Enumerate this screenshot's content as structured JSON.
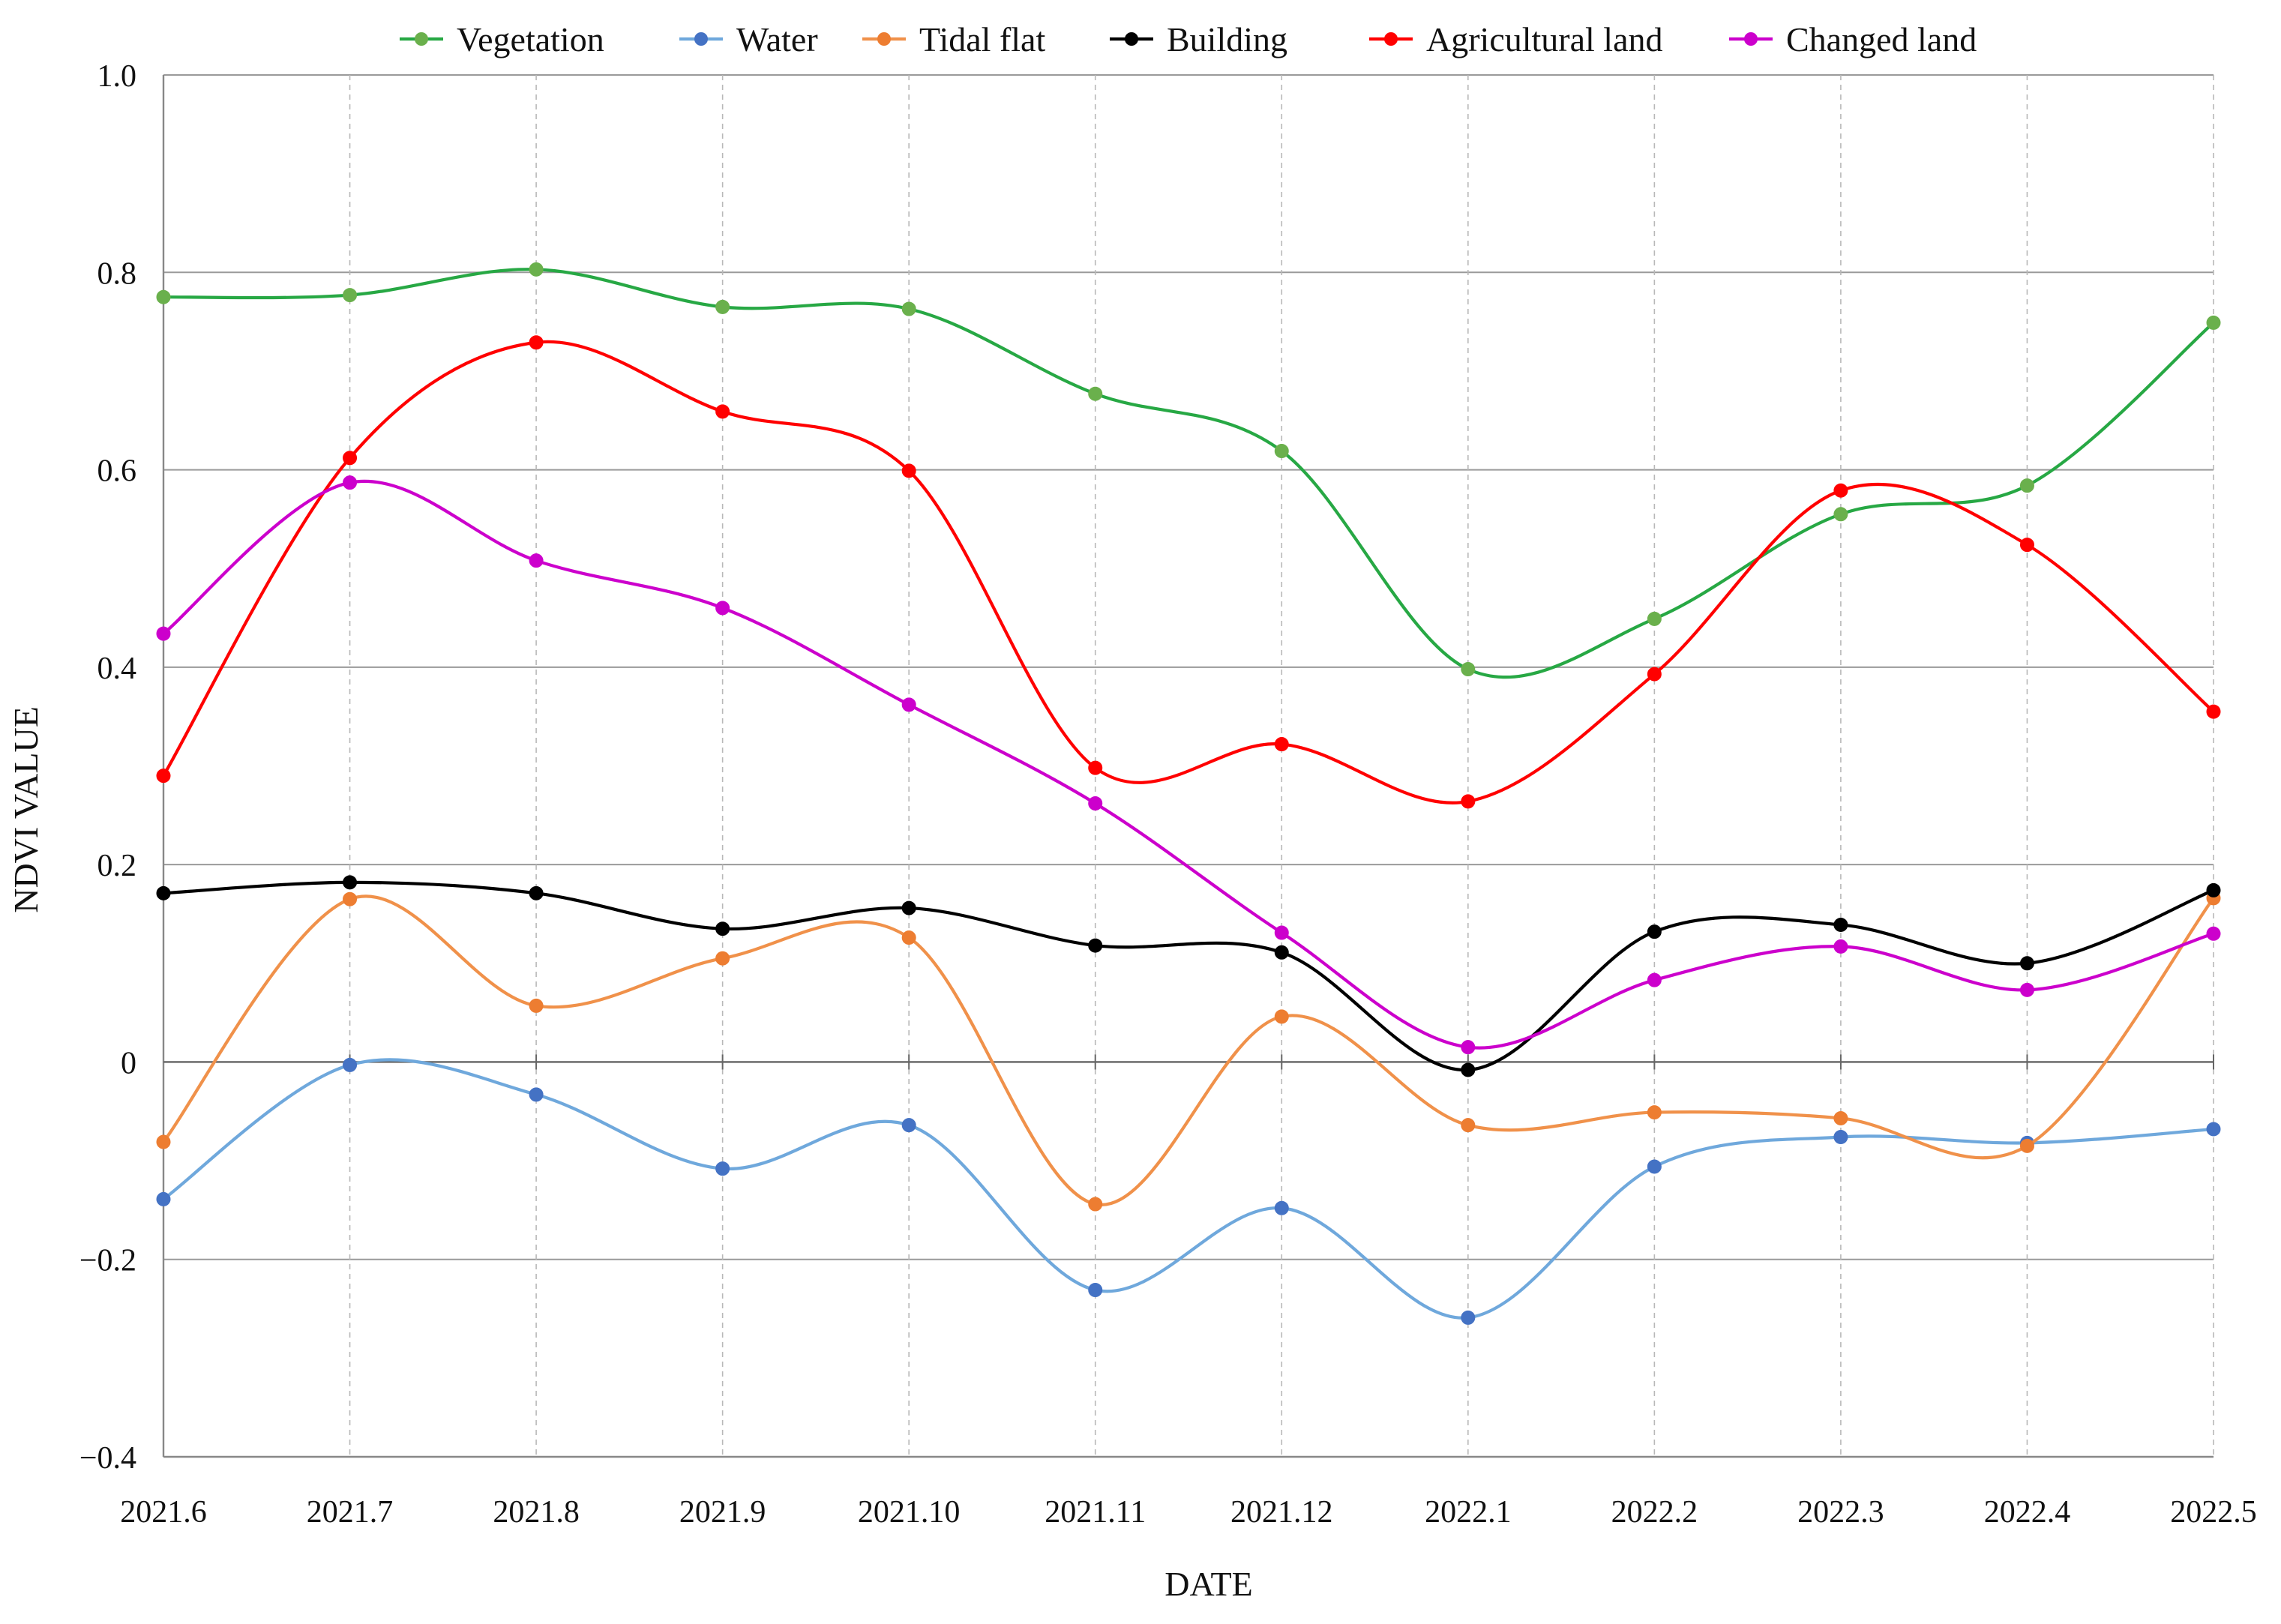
{
  "chart_data": {
    "type": "line",
    "title": "",
    "xlabel": "DATE",
    "ylabel": "NDVI VALUE",
    "categories": [
      "2021.6",
      "2021.7",
      "2021.8",
      "2021.9",
      "2021.10",
      "2021.11",
      "2021.12",
      "2022.1",
      "2022.2",
      "2022.3",
      "2022.4",
      "2022.5"
    ],
    "ylim": [
      -0.4,
      1.0
    ],
    "yticks": [
      {
        "value": -0.4,
        "label": "−0.4"
      },
      {
        "value": -0.2,
        "label": "−0.2"
      },
      {
        "value": 0,
        "label": "0"
      },
      {
        "value": 0.2,
        "label": "0.2"
      },
      {
        "value": 0.4,
        "label": "0.4"
      },
      {
        "value": 0.6,
        "label": "0.6"
      },
      {
        "value": 0.8,
        "label": "0.8"
      },
      {
        "value": 1.0,
        "label": "1.0"
      }
    ],
    "grid": true,
    "legend_position": "top",
    "series": [
      {
        "name": "Vegetation",
        "color": "#27a844",
        "marker_color": "#6ab04c",
        "values": [
          0.775,
          0.777,
          0.803,
          0.765,
          0.763,
          0.677,
          0.619,
          0.398,
          0.449,
          0.555,
          0.584,
          0.749
        ]
      },
      {
        "name": "Water",
        "color": "#6fa8dc",
        "marker_color": "#4472c4",
        "values": [
          -0.139,
          -0.003,
          -0.033,
          -0.108,
          -0.064,
          -0.231,
          -0.148,
          -0.259,
          -0.106,
          -0.076,
          -0.082,
          -0.068
        ]
      },
      {
        "name": "Tidal flat",
        "color": "#f0914a",
        "marker_color": "#ed7d31",
        "values": [
          -0.081,
          0.165,
          0.057,
          0.105,
          0.126,
          -0.144,
          0.046,
          -0.064,
          -0.051,
          -0.057,
          -0.085,
          0.166
        ]
      },
      {
        "name": "Building",
        "color": "#000000",
        "marker_color": "#000000",
        "values": [
          0.171,
          0.182,
          0.171,
          0.135,
          0.156,
          0.118,
          0.111,
          -0.008,
          0.132,
          0.139,
          0.1,
          0.174
        ]
      },
      {
        "name": "Agricultural land",
        "color": "#ff0000",
        "marker_color": "#ff0000",
        "values": [
          0.29,
          0.612,
          0.729,
          0.659,
          0.599,
          0.298,
          0.322,
          0.264,
          0.393,
          0.579,
          0.524,
          0.355
        ]
      },
      {
        "name": "Changed land",
        "color": "#cc00cc",
        "marker_color": "#cc00cc",
        "values": [
          0.434,
          0.587,
          0.508,
          0.46,
          0.362,
          0.262,
          0.131,
          0.015,
          0.083,
          0.117,
          0.073,
          0.13
        ]
      }
    ]
  }
}
